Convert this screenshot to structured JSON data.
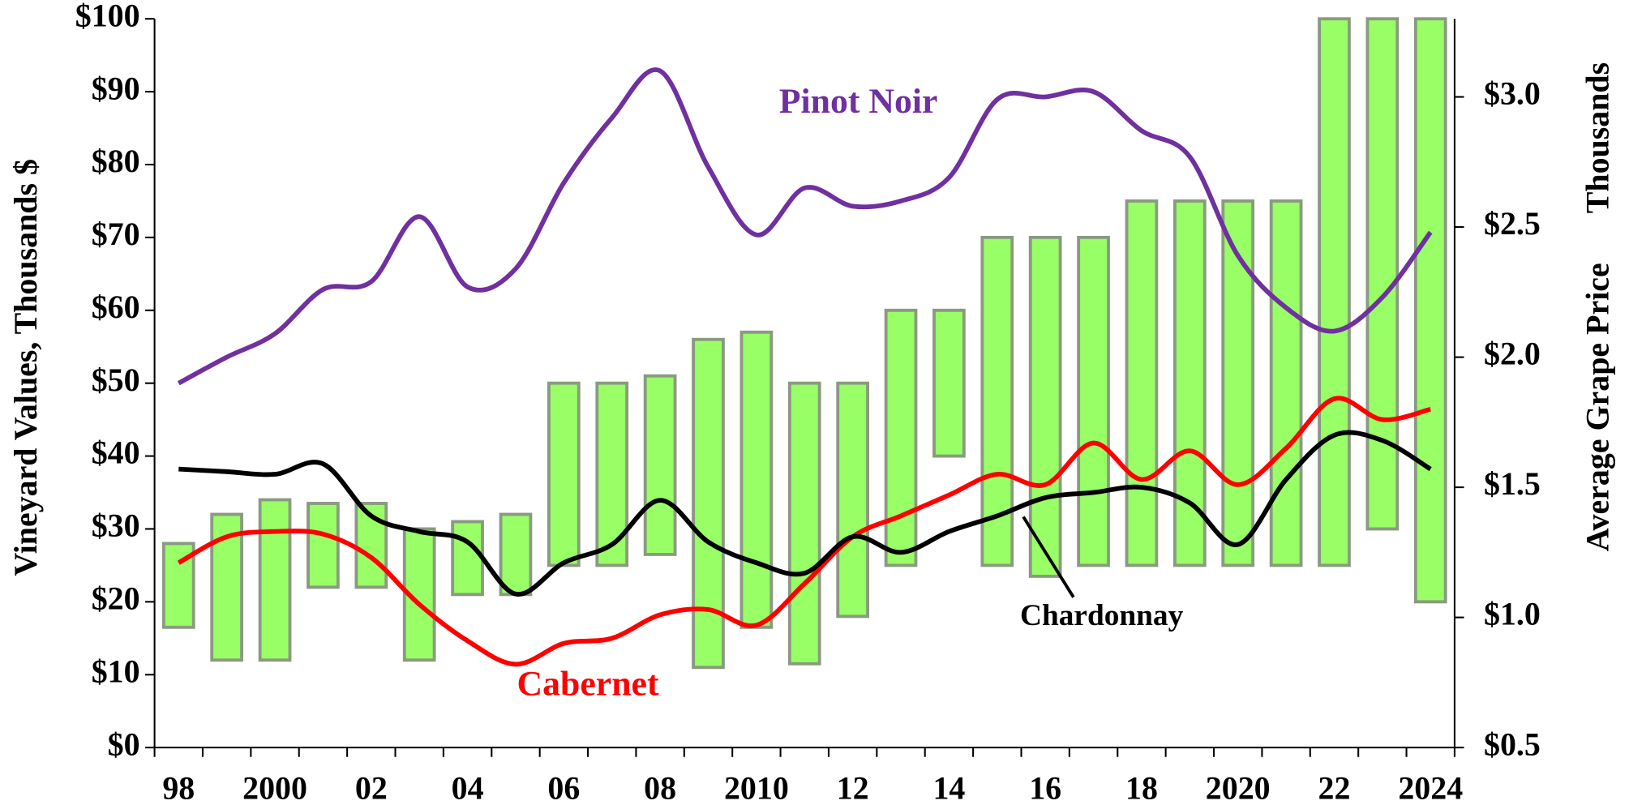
{
  "chart_data": {
    "type": "combo",
    "y_label": "Vineyard Values, Thousands $",
    "y2_label": "Average Grape Price",
    "y2_unit": "Thousands",
    "categories": [
      "98",
      null,
      "2000",
      null,
      "02",
      null,
      "04",
      null,
      "06",
      null,
      "08",
      null,
      "2010",
      null,
      "12",
      null,
      "14",
      null,
      "16",
      null,
      "18",
      null,
      "2020",
      null,
      "22",
      null,
      "2024"
    ],
    "ylim": [
      0,
      100
    ],
    "yticks": [
      {
        "value": 0,
        "label": "$0"
      },
      {
        "value": 10,
        "label": "$10"
      },
      {
        "value": 20,
        "label": "$20"
      },
      {
        "value": 30,
        "label": "$30"
      },
      {
        "value": 40,
        "label": "$40"
      },
      {
        "value": 50,
        "label": "$50"
      },
      {
        "value": 60,
        "label": "$60"
      },
      {
        "value": 70,
        "label": "$70"
      },
      {
        "value": 80,
        "label": "$80"
      },
      {
        "value": 90,
        "label": "$90"
      },
      {
        "value": 100,
        "label": "$100"
      }
    ],
    "y2lim": [
      0.5,
      3.3
    ],
    "y2ticks": [
      {
        "value": 0.5,
        "label": "$0.5"
      },
      {
        "value": 1.0,
        "label": "$1.0"
      },
      {
        "value": 1.5,
        "label": "$1.5"
      },
      {
        "value": 2.0,
        "label": "$2.0"
      },
      {
        "value": 2.5,
        "label": "$2.5"
      },
      {
        "value": 3.0,
        "label": "$3.0"
      }
    ],
    "ranges": {
      "type": "range_bar",
      "color": "#99ff66",
      "edge": "#8a9a80",
      "low": [
        16.5,
        12,
        12,
        22,
        22,
        12,
        21,
        21,
        25,
        25,
        26.5,
        11,
        16.5,
        11.5,
        18,
        25,
        40,
        25,
        23.5,
        25,
        25,
        25,
        25,
        25,
        25,
        30,
        20
      ],
      "high": [
        28,
        32,
        34,
        33.5,
        33.5,
        30,
        31,
        32,
        50,
        50,
        51,
        56,
        57,
        50,
        50,
        60,
        60,
        70,
        70,
        70,
        75,
        75,
        75,
        75,
        100,
        100,
        100
      ]
    },
    "series": [
      {
        "name": "Pinot Noir",
        "color": "#7030a0",
        "axis": "y2",
        "values": [
          1.9,
          2.0,
          2.09,
          2.26,
          2.29,
          2.54,
          2.27,
          2.34,
          2.67,
          2.92,
          3.1,
          2.73,
          2.47,
          2.65,
          2.58,
          2.6,
          2.69,
          2.99,
          3.0,
          3.02,
          2.87,
          2.77,
          2.39,
          2.19,
          2.1,
          2.23,
          2.48
        ]
      },
      {
        "name": "Cabernet",
        "color": "#ff0000",
        "axis": "y2",
        "values": [
          1.21,
          1.31,
          1.33,
          1.32,
          1.23,
          1.05,
          0.91,
          0.82,
          0.9,
          0.92,
          1.01,
          1.03,
          0.97,
          1.13,
          1.31,
          1.39,
          1.47,
          1.55,
          1.51,
          1.67,
          1.53,
          1.64,
          1.51,
          1.65,
          1.84,
          1.76,
          1.8
        ]
      },
      {
        "name": "Chardonnay",
        "color": "#000000",
        "axis": "y2",
        "values": [
          1.57,
          1.56,
          1.55,
          1.59,
          1.39,
          1.33,
          1.29,
          1.09,
          1.21,
          1.28,
          1.45,
          1.29,
          1.21,
          1.17,
          1.31,
          1.25,
          1.33,
          1.39,
          1.46,
          1.48,
          1.5,
          1.44,
          1.28,
          1.53,
          1.7,
          1.68,
          1.57
        ]
      }
    ]
  }
}
